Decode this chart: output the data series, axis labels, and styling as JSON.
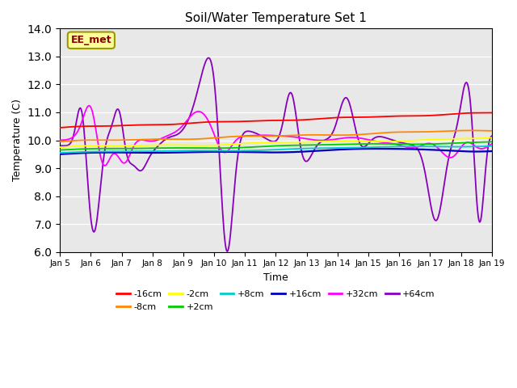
{
  "title": "Soil/Water Temperature Set 1",
  "xlabel": "Time",
  "ylabel": "Temperature (C)",
  "ylim": [
    6.0,
    14.0
  ],
  "yticks": [
    6.0,
    7.0,
    8.0,
    9.0,
    10.0,
    11.0,
    12.0,
    13.0,
    14.0
  ],
  "xtick_labels": [
    "Jan 5",
    "Jan 6",
    "Jan 7",
    "Jan 8",
    "Jan 9",
    "Jan 10",
    "Jan 11",
    "Jan 12",
    "Jan 13",
    "Jan 14",
    "Jan 15",
    "Jan 16",
    "Jan 17",
    "Jan 18",
    "Jan 19"
  ],
  "legend_entries": [
    "-16cm",
    "-8cm",
    "-2cm",
    "+2cm",
    "+8cm",
    "+16cm",
    "+32cm",
    "+64cm"
  ],
  "line_colors": {
    "-16cm": "#ff0000",
    "-8cm": "#ff8800",
    "-2cm": "#ffff00",
    "+2cm": "#00cc00",
    "+8cm": "#00cccc",
    "+16cm": "#0000bb",
    "+32cm": "#ff00ff",
    "+64cm": "#8800bb"
  },
  "background_color": "#e8e8e8",
  "annotation_text": "EE_met",
  "annotation_box_color": "#ffff99",
  "annotation_box_edge_color": "#999900"
}
